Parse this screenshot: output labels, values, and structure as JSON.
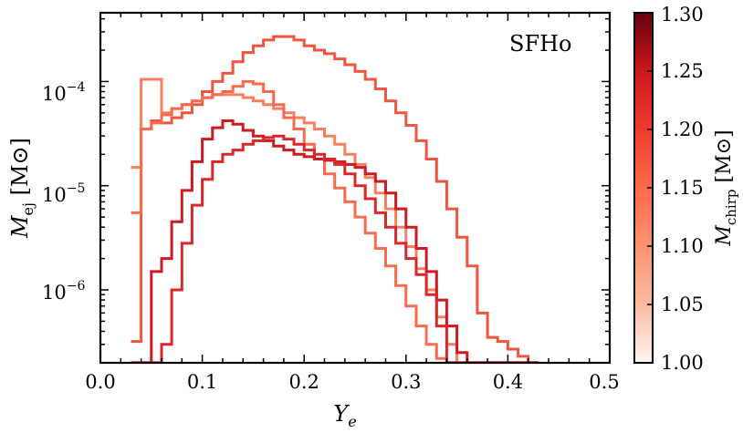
{
  "chart_data": {
    "type": "line",
    "step": true,
    "title": "",
    "annotation": "SFHo",
    "xlabel": "Y",
    "xlabel_sub": "e",
    "ylabel": "M",
    "ylabel_sub": "ej",
    "ylabel_unit": "[M⊙]",
    "xlim": [
      0.0,
      0.5
    ],
    "ylim_log10": [
      -6.7,
      -3.34
    ],
    "yscale": "log",
    "xticks": [
      0.0,
      0.1,
      0.2,
      0.3,
      0.4,
      0.5
    ],
    "xtick_labels": [
      "0.0",
      "0.1",
      "0.2",
      "0.3",
      "0.4",
      "0.5"
    ],
    "yticks_log10": [
      -6,
      -5,
      -4
    ],
    "ytick_labels": [
      {
        "base": "10",
        "exp": "−6"
      },
      {
        "base": "10",
        "exp": "−5"
      },
      {
        "base": "10",
        "exp": "−4"
      }
    ],
    "bin_width": 0.01,
    "bins_start": 0.03,
    "colorbar": {
      "label": "M",
      "label_sub": "chirp",
      "label_unit": "[M⊙]",
      "range": [
        1.0,
        1.3
      ],
      "ticks": [
        "1.00",
        "1.05",
        "1.10",
        "1.15",
        "1.20",
        "1.25",
        "1.30"
      ],
      "colors": [
        "#fff5f0",
        "#fcbba1",
        "#fc9272",
        "#fb6a4a",
        "#ef3b2c",
        "#cb181d",
        "#67000d"
      ]
    },
    "series": [
      {
        "name": "M_chirp = 1.15",
        "color": "#ef5540",
        "values": [
          3.2e-07,
          3.5e-05,
          4.2e-05,
          4e-05,
          4.5e-05,
          5e-05,
          6e-05,
          8e-05,
          0.0001,
          0.00012,
          0.000155,
          0.00019,
          0.00022,
          0.00025,
          0.00027,
          0.00027,
          0.00025,
          0.00022,
          0.0002,
          0.000185,
          0.000165,
          0.000145,
          0.000125,
          0.000105,
          8.5e-05,
          6.5e-05,
          5e-05,
          3.8e-05,
          2.7e-05,
          1.8e-05,
          1.1e-05,
          6e-06,
          3.2e-06,
          1.7e-06,
          6e-07,
          3.5e-07,
          3.2e-07,
          2.7e-07,
          2.3e-07,
          2e-07
        ]
      },
      {
        "name": "M_chirp = 1.10",
        "color": "#f8805f",
        "values": [
          1.5e-05,
          0.000105,
          0.000105,
          5e-05,
          5.5e-05,
          6e-05,
          6.5e-05,
          7e-05,
          7.5e-05,
          7.5e-05,
          7.5e-05,
          7e-05,
          6.5e-05,
          6e-05,
          5.5e-05,
          5e-05,
          4.5e-05,
          4e-05,
          3.5e-05,
          3e-05,
          2.5e-05,
          2e-05,
          1.6e-05,
          1.2e-05,
          8.5e-06,
          6e-06,
          4e-06,
          2.6e-06,
          1.6e-06,
          1e-06,
          5.5e-07,
          3e-07,
          2e-07,
          2e-07,
          2e-07,
          2e-07,
          2e-07,
          2e-07,
          2e-07,
          2e-07
        ]
      },
      {
        "name": "M_chirp = 1.13",
        "color": "#f96a4e",
        "values": [
          5.5e-06,
          3.5e-05,
          4e-05,
          4.8e-05,
          5.5e-05,
          6e-05,
          6.5e-05,
          7e-05,
          7.5e-05,
          8e-05,
          9e-05,
          0.0001,
          9.5e-05,
          8e-05,
          6e-05,
          4.5e-05,
          3.5e-05,
          2.5e-05,
          1.8e-05,
          1.3e-05,
          9.5e-06,
          7e-06,
          5e-06,
          3.5e-06,
          2.5e-06,
          1.7e-06,
          1.1e-06,
          7e-07,
          4.5e-07,
          3e-07,
          2.2e-07,
          2e-07,
          2e-07,
          2e-07,
          2e-07,
          2e-07,
          2e-07,
          2e-07,
          2e-07,
          2e-07
        ]
      },
      {
        "name": "M_chirp = 1.25",
        "color": "#cc1b22",
        "values": [
          2e-07,
          2e-07,
          1.5e-06,
          2e-06,
          4.5e-06,
          9e-06,
          1.7e-05,
          2.8e-05,
          3.6e-05,
          4.2e-05,
          3.9e-05,
          3.4e-05,
          3e-05,
          2.7e-05,
          2.4e-05,
          2.2e-05,
          2e-05,
          1.9e-05,
          1.8e-05,
          1.75e-05,
          1.7e-05,
          1.6e-05,
          1.5e-05,
          1.3e-05,
          1.1e-05,
          8.5e-06,
          6e-06,
          4e-06,
          2.5e-06,
          1.5e-06,
          8e-07,
          4.5e-07,
          2.5e-07,
          2e-07,
          2e-07,
          2e-07,
          2e-07,
          2e-07,
          2e-07,
          2e-07
        ]
      },
      {
        "name": "M_chirp = 1.22",
        "color": "#d9282b",
        "values": [
          2e-07,
          2e-07,
          2e-07,
          3e-07,
          1e-06,
          2.8e-06,
          6.5e-06,
          1.15e-05,
          1.7e-05,
          2e-05,
          2.2e-05,
          2.5e-05,
          2.7e-05,
          2.9e-05,
          3e-05,
          2.8e-05,
          2.5e-05,
          2.2e-05,
          2e-05,
          1.8e-05,
          1.6e-05,
          1.3e-05,
          1e-05,
          7.5e-06,
          5.5e-06,
          4e-06,
          2.8e-06,
          2e-06,
          1.4e-06,
          9e-07,
          4.5e-07,
          2e-07,
          2e-07,
          2e-07,
          2e-07,
          2e-07,
          2e-07,
          2e-07,
          2e-07,
          2e-07
        ]
      }
    ]
  }
}
